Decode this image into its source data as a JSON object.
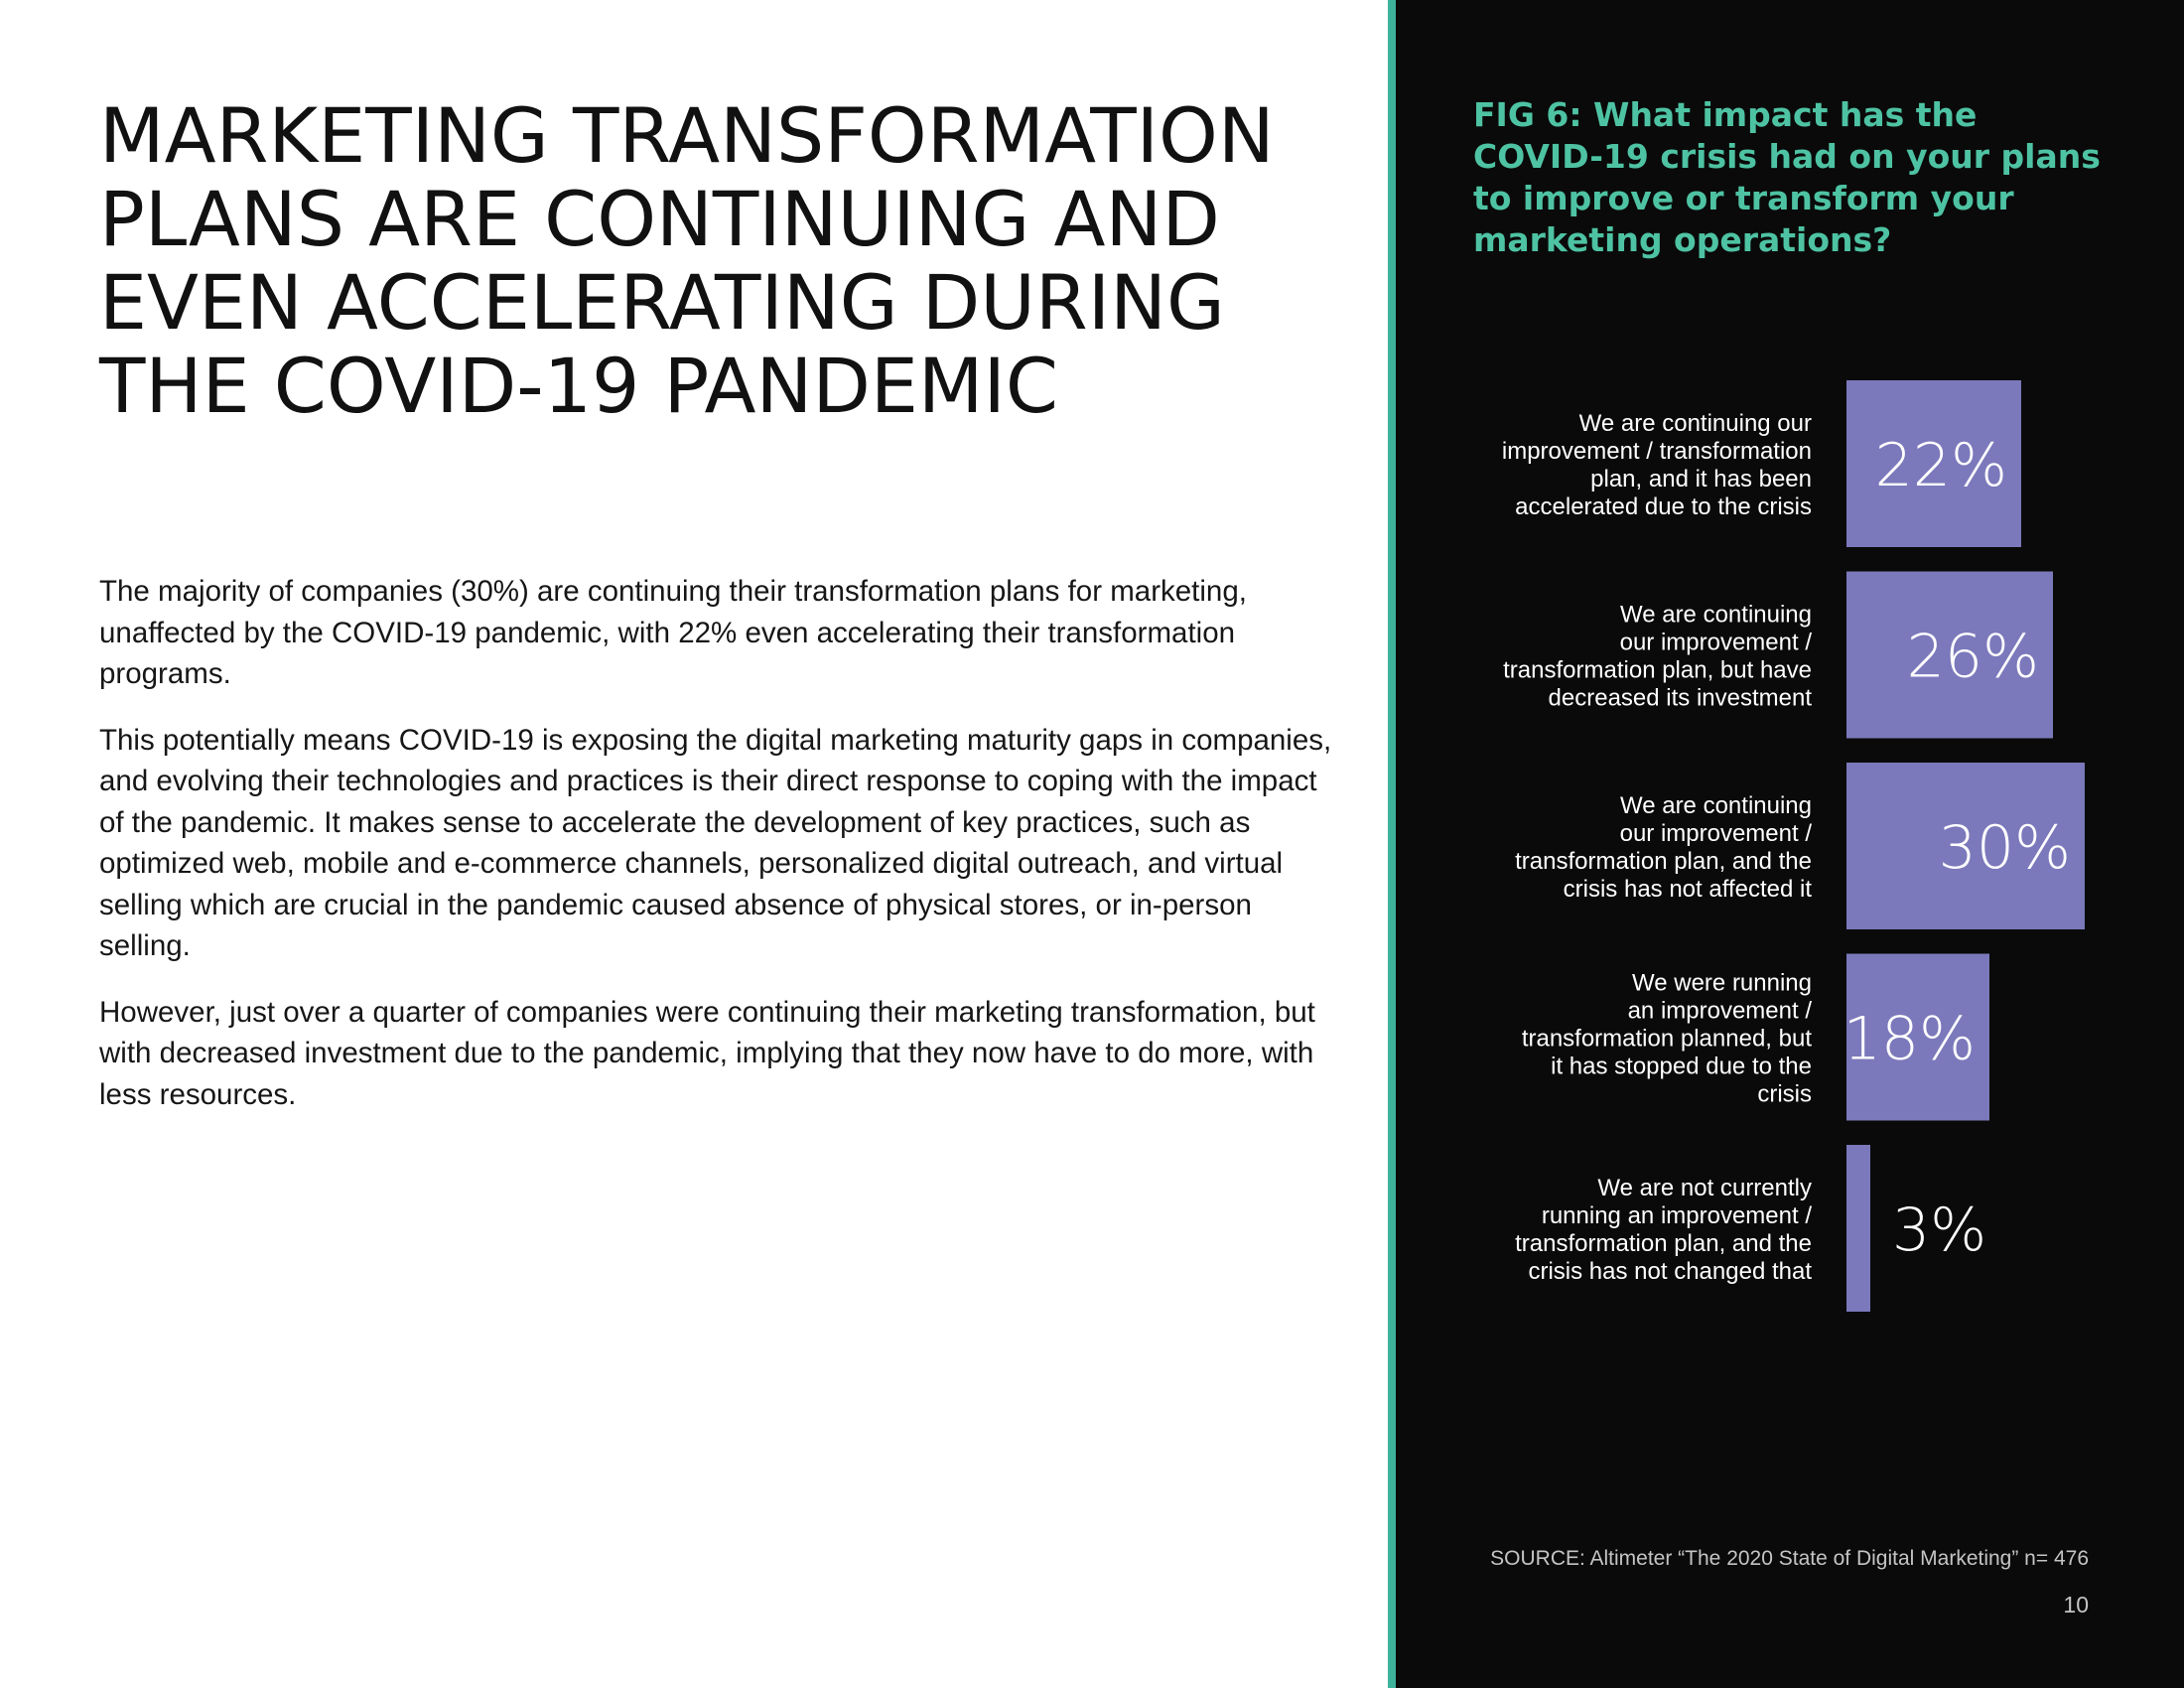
{
  "headline": {
    "lines": [
      "MARKETING TRANSFORMATION",
      "PLANS ARE CONTINUING AND",
      "EVEN ACCELERATING DURING",
      "THE COVID-19 PANDEMIC"
    ]
  },
  "body": {
    "paragraphs": [
      "The majority of companies (30%) are continuing their transformation plans for marketing, unaffected by the COVID-19 pandemic, with 22% even accelerating their transformation programs.",
      "This potentially means COVID-19 is exposing the digital marketing maturity gaps in companies, and evolving their technologies and practices is their direct response to coping with the impact of the pandemic. It makes sense to accelerate the development of key practices, such as optimized web, mobile and e-commerce channels, personalized digital outreach, and virtual selling which are crucial in the pandemic caused absence of physical stores, or in-person selling.",
      "However, just over a quarter of companies were continuing their marketing transformation, but with decreased investment due to the pandemic, implying that they now have to do more, with less resources."
    ]
  },
  "figure": {
    "title_lines": [
      "FIG 6: What impact has the",
      "COVID-19 crisis had on your plans",
      "to improve or transform your",
      "marketing operations?"
    ],
    "source": "SOURCE: Altimeter “The 2020 State of Digital Marketing” n= 476",
    "page_number": "10"
  },
  "colors": {
    "accent_teal": "#4ec3a3",
    "divider_teal": "#3eb39c",
    "bar_purple": "#7b79bb",
    "panel_black": "#0a0a0a",
    "label_white": "#ffffff"
  },
  "chart_data": {
    "type": "bar",
    "orientation": "horizontal",
    "title": "FIG 6: What impact has the COVID-19 crisis had on your plans to improve or transform your marketing operations?",
    "categories": [
      [
        "We are continuing our",
        "improvement / transformation",
        "plan, and it has been",
        "accelerated due to the crisis"
      ],
      [
        "We are continuing",
        "our improvement /",
        "transformation plan, but have",
        "decreased its investment"
      ],
      [
        "We are continuing",
        "our improvement /",
        "transformation plan, and the",
        "crisis has not affected it"
      ],
      [
        "We were running",
        "an improvement /",
        "transformation planned, but",
        "it has stopped due to the",
        "crisis"
      ],
      [
        "We are not currently",
        "running an improvement /",
        "transformation plan, and the",
        "crisis has not changed that"
      ]
    ],
    "values": [
      22,
      26,
      30,
      18,
      3
    ],
    "value_labels": [
      "22%",
      "26%",
      "30%",
      "18%",
      "3%"
    ],
    "unit": "%",
    "xlim": [
      0,
      30
    ],
    "grid": false,
    "legend": "none"
  }
}
